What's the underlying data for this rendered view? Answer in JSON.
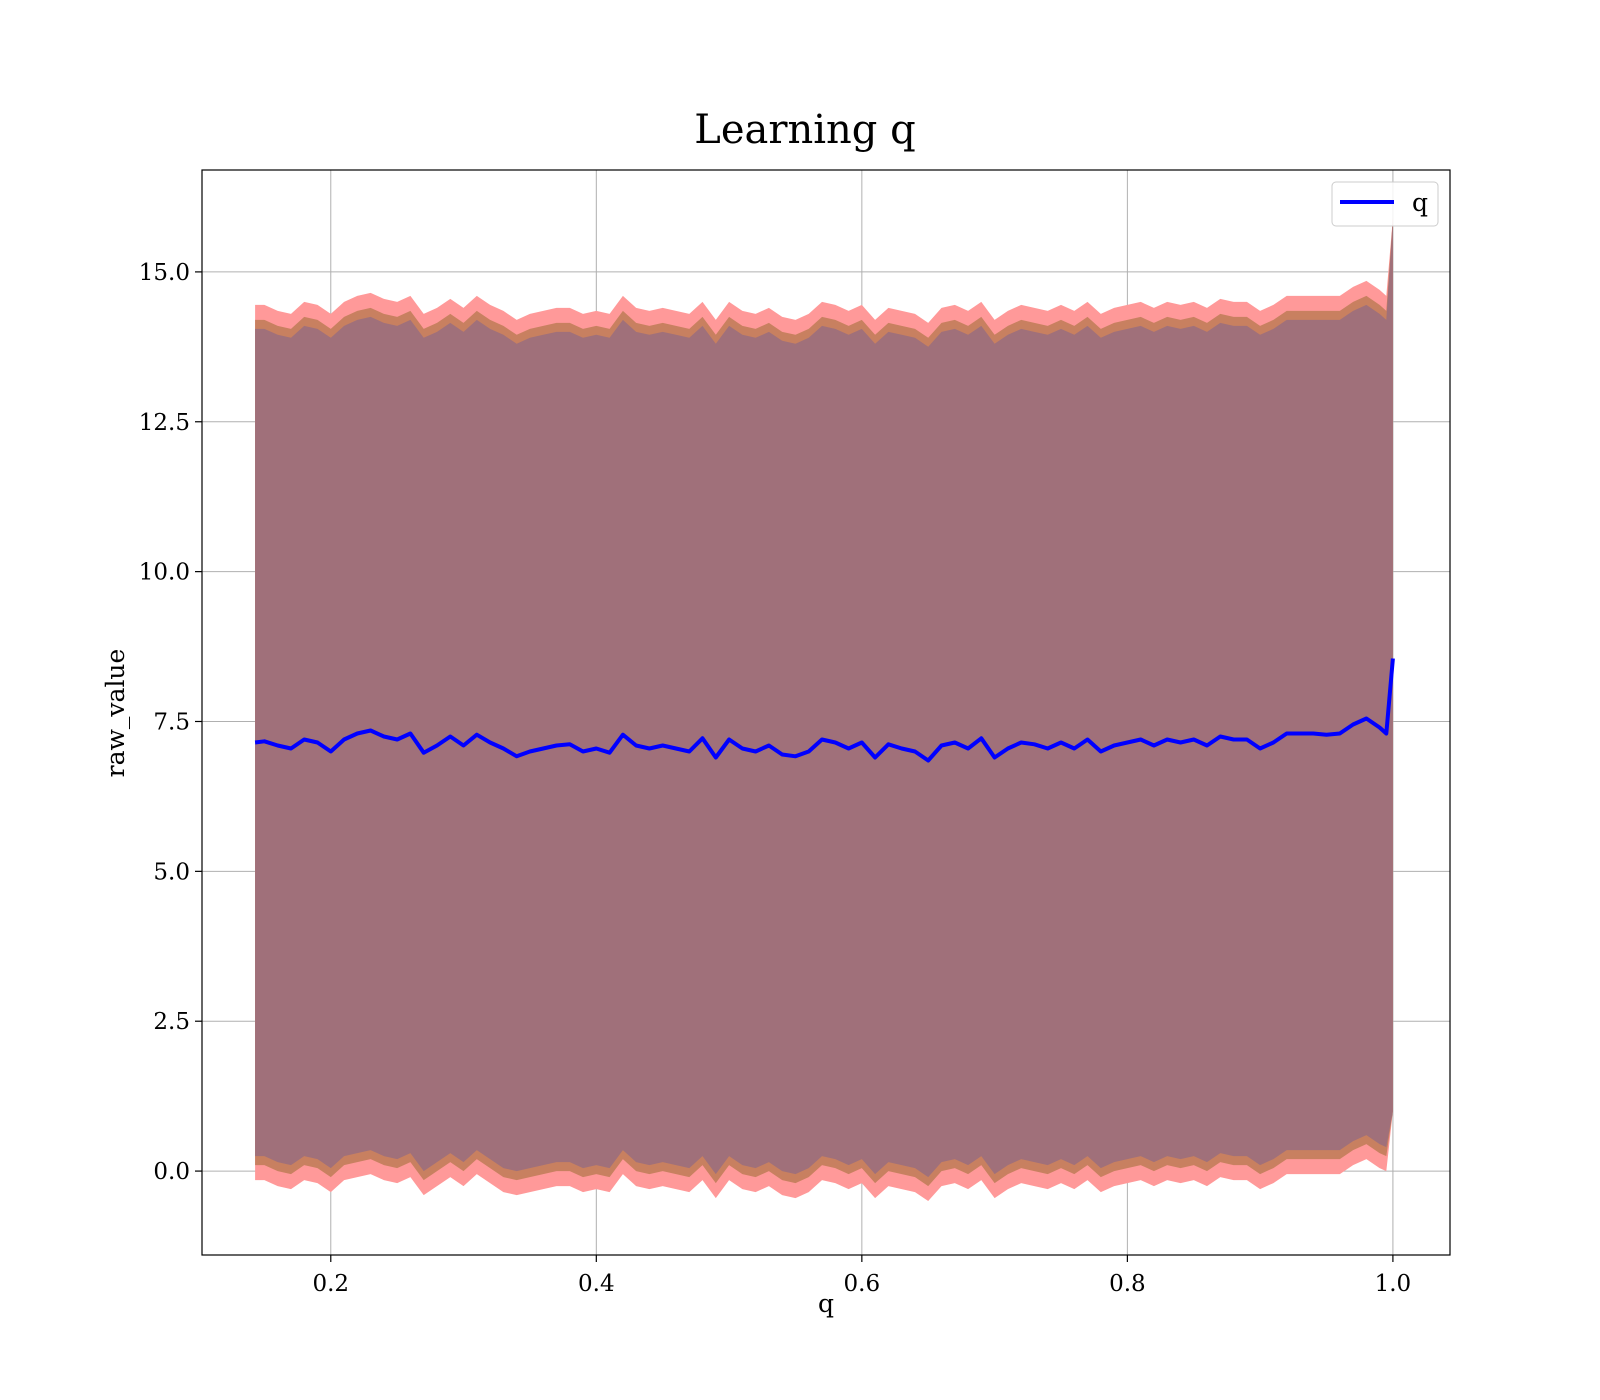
{
  "chart_data": {
    "type": "line",
    "title": "Learning q",
    "xlabel": "q",
    "ylabel": "raw_value",
    "xlim": [
      0.103,
      1.043
    ],
    "ylim": [
      -1.4,
      16.7
    ],
    "x_ticks": [
      0.2,
      0.4,
      0.6,
      0.8,
      1.0
    ],
    "x_tick_labels": [
      "0.2",
      "0.4",
      "0.6",
      "0.8",
      "1.0"
    ],
    "y_ticks": [
      0.0,
      2.5,
      5.0,
      7.5,
      10.0,
      12.5,
      15.0
    ],
    "y_tick_labels": [
      "0.0",
      "2.5",
      "5.0",
      "7.5",
      "10.0",
      "12.5",
      "15.0"
    ],
    "grid": true,
    "legend": {
      "position": "top-right",
      "entries": [
        "q"
      ]
    },
    "colors": {
      "line": "#0000ff",
      "band_outer": "#ff9999",
      "band_middle": "#c88060",
      "band_inner": "#a0707a"
    },
    "series": [
      {
        "name": "q",
        "x": [
          0.143,
          0.15,
          0.16,
          0.17,
          0.18,
          0.19,
          0.2,
          0.21,
          0.22,
          0.23,
          0.24,
          0.25,
          0.26,
          0.27,
          0.28,
          0.29,
          0.3,
          0.31,
          0.32,
          0.33,
          0.34,
          0.35,
          0.36,
          0.37,
          0.38,
          0.39,
          0.4,
          0.41,
          0.42,
          0.43,
          0.44,
          0.45,
          0.46,
          0.47,
          0.48,
          0.49,
          0.5,
          0.51,
          0.52,
          0.53,
          0.54,
          0.55,
          0.56,
          0.57,
          0.58,
          0.59,
          0.6,
          0.61,
          0.62,
          0.63,
          0.64,
          0.65,
          0.66,
          0.67,
          0.68,
          0.69,
          0.7,
          0.71,
          0.72,
          0.73,
          0.74,
          0.75,
          0.76,
          0.77,
          0.78,
          0.79,
          0.8,
          0.81,
          0.82,
          0.83,
          0.84,
          0.85,
          0.86,
          0.87,
          0.88,
          0.89,
          0.9,
          0.91,
          0.92,
          0.93,
          0.94,
          0.95,
          0.96,
          0.97,
          0.98,
          0.99,
          0.995,
          1.0
        ],
        "y": [
          7.15,
          7.17,
          7.1,
          7.05,
          7.2,
          7.15,
          7.0,
          7.2,
          7.3,
          7.35,
          7.25,
          7.2,
          7.3,
          6.98,
          7.1,
          7.25,
          7.1,
          7.28,
          7.15,
          7.05,
          6.92,
          7.0,
          7.05,
          7.1,
          7.12,
          7.0,
          7.05,
          6.98,
          7.28,
          7.1,
          7.05,
          7.1,
          7.05,
          7.0,
          7.22,
          6.9,
          7.2,
          7.05,
          7.0,
          7.1,
          6.95,
          6.92,
          7.0,
          7.2,
          7.15,
          7.05,
          7.15,
          6.9,
          7.12,
          7.05,
          7.0,
          6.85,
          7.1,
          7.15,
          7.05,
          7.22,
          6.9,
          7.05,
          7.15,
          7.12,
          7.05,
          7.15,
          7.05,
          7.2,
          7.0,
          7.1,
          7.15,
          7.2,
          7.1,
          7.2,
          7.15,
          7.2,
          7.1,
          7.25,
          7.2,
          7.2,
          7.05,
          7.15,
          7.3,
          7.3,
          7.3,
          7.28,
          7.3,
          7.45,
          7.55,
          7.4,
          7.3,
          8.55
        ]
      }
    ],
    "bands": [
      {
        "lower": [
          -0.15,
          -0.15,
          -0.25,
          -0.3,
          -0.15,
          -0.2,
          -0.35,
          -0.15,
          -0.1,
          -0.05,
          -0.15,
          -0.2,
          -0.1,
          -0.4,
          -0.25,
          -0.1,
          -0.25,
          -0.05,
          -0.2,
          -0.35,
          -0.4,
          -0.35,
          -0.3,
          -0.25,
          -0.25,
          -0.35,
          -0.3,
          -0.35,
          -0.05,
          -0.25,
          -0.3,
          -0.25,
          -0.3,
          -0.35,
          -0.15,
          -0.45,
          -0.15,
          -0.3,
          -0.35,
          -0.25,
          -0.4,
          -0.45,
          -0.35,
          -0.15,
          -0.2,
          -0.3,
          -0.2,
          -0.45,
          -0.25,
          -0.3,
          -0.35,
          -0.5,
          -0.25,
          -0.2,
          -0.3,
          -0.15,
          -0.45,
          -0.3,
          -0.2,
          -0.25,
          -0.3,
          -0.2,
          -0.3,
          -0.15,
          -0.35,
          -0.25,
          -0.2,
          -0.15,
          -0.25,
          -0.15,
          -0.2,
          -0.15,
          -0.25,
          -0.1,
          -0.15,
          -0.15,
          -0.3,
          -0.2,
          -0.05,
          -0.05,
          -0.05,
          -0.05,
          -0.05,
          0.1,
          0.2,
          0.05,
          0.0,
          1.0
        ],
        "upper": [
          14.45,
          14.45,
          14.35,
          14.3,
          14.5,
          14.45,
          14.3,
          14.5,
          14.6,
          14.65,
          14.55,
          14.5,
          14.6,
          14.3,
          14.4,
          14.55,
          14.4,
          14.6,
          14.45,
          14.35,
          14.2,
          14.3,
          14.35,
          14.4,
          14.4,
          14.3,
          14.35,
          14.3,
          14.6,
          14.4,
          14.35,
          14.4,
          14.35,
          14.3,
          14.5,
          14.2,
          14.5,
          14.35,
          14.3,
          14.4,
          14.25,
          14.2,
          14.3,
          14.5,
          14.45,
          14.35,
          14.45,
          14.2,
          14.4,
          14.35,
          14.3,
          14.15,
          14.4,
          14.45,
          14.35,
          14.5,
          14.2,
          14.35,
          14.45,
          14.4,
          14.35,
          14.45,
          14.35,
          14.5,
          14.3,
          14.4,
          14.45,
          14.5,
          14.4,
          14.5,
          14.45,
          14.5,
          14.4,
          14.55,
          14.5,
          14.5,
          14.35,
          14.45,
          14.6,
          14.6,
          14.6,
          14.6,
          14.6,
          14.75,
          14.85,
          14.7,
          14.6,
          15.9
        ]
      },
      {
        "lower": [
          0.1,
          0.1,
          0.0,
          -0.05,
          0.1,
          0.05,
          -0.1,
          0.1,
          0.15,
          0.2,
          0.1,
          0.05,
          0.15,
          -0.15,
          0.0,
          0.15,
          0.0,
          0.2,
          0.05,
          -0.1,
          -0.15,
          -0.1,
          -0.05,
          0.0,
          0.0,
          -0.1,
          -0.05,
          -0.1,
          0.2,
          0.0,
          -0.05,
          0.0,
          -0.05,
          -0.1,
          0.1,
          -0.2,
          0.1,
          -0.05,
          -0.1,
          0.0,
          -0.15,
          -0.2,
          -0.1,
          0.1,
          0.05,
          -0.05,
          0.05,
          -0.2,
          0.0,
          -0.05,
          -0.1,
          -0.25,
          0.0,
          0.05,
          -0.05,
          0.1,
          -0.2,
          -0.05,
          0.05,
          0.0,
          -0.05,
          0.05,
          -0.05,
          0.1,
          -0.1,
          0.0,
          0.05,
          0.1,
          0.0,
          0.1,
          0.05,
          0.1,
          0.0,
          0.15,
          0.1,
          0.1,
          -0.05,
          0.05,
          0.2,
          0.2,
          0.2,
          0.2,
          0.2,
          0.35,
          0.45,
          0.3,
          0.25,
          1.0
        ],
        "upper": [
          14.2,
          14.2,
          14.1,
          14.05,
          14.25,
          14.2,
          14.05,
          14.25,
          14.35,
          14.4,
          14.3,
          14.25,
          14.35,
          14.05,
          14.15,
          14.3,
          14.15,
          14.35,
          14.2,
          14.1,
          13.95,
          14.05,
          14.1,
          14.15,
          14.15,
          14.05,
          14.1,
          14.05,
          14.35,
          14.15,
          14.1,
          14.15,
          14.1,
          14.05,
          14.25,
          13.95,
          14.25,
          14.1,
          14.05,
          14.15,
          14.0,
          13.95,
          14.05,
          14.25,
          14.2,
          14.1,
          14.2,
          13.95,
          14.15,
          14.1,
          14.05,
          13.9,
          14.15,
          14.2,
          14.1,
          14.25,
          13.95,
          14.1,
          14.2,
          14.15,
          14.1,
          14.2,
          14.1,
          14.25,
          14.05,
          14.15,
          14.2,
          14.25,
          14.15,
          14.25,
          14.2,
          14.25,
          14.15,
          14.3,
          14.25,
          14.25,
          14.1,
          14.2,
          14.35,
          14.35,
          14.35,
          14.35,
          14.35,
          14.5,
          14.6,
          14.45,
          14.35,
          15.9
        ]
      },
      {
        "lower": [
          0.25,
          0.25,
          0.15,
          0.1,
          0.25,
          0.2,
          0.05,
          0.25,
          0.3,
          0.35,
          0.25,
          0.2,
          0.3,
          0.0,
          0.15,
          0.3,
          0.15,
          0.35,
          0.2,
          0.05,
          0.0,
          0.05,
          0.1,
          0.15,
          0.15,
          0.05,
          0.1,
          0.05,
          0.35,
          0.15,
          0.1,
          0.15,
          0.1,
          0.05,
          0.25,
          -0.05,
          0.25,
          0.1,
          0.05,
          0.15,
          0.0,
          -0.05,
          0.05,
          0.25,
          0.2,
          0.1,
          0.2,
          -0.05,
          0.15,
          0.1,
          0.05,
          -0.1,
          0.15,
          0.2,
          0.1,
          0.25,
          -0.05,
          0.1,
          0.2,
          0.15,
          0.1,
          0.2,
          0.1,
          0.25,
          0.05,
          0.15,
          0.2,
          0.25,
          0.15,
          0.25,
          0.2,
          0.25,
          0.15,
          0.3,
          0.25,
          0.25,
          0.1,
          0.2,
          0.35,
          0.35,
          0.35,
          0.35,
          0.35,
          0.5,
          0.6,
          0.45,
          0.4,
          1.0
        ],
        "upper": [
          14.05,
          14.05,
          13.95,
          13.9,
          14.1,
          14.05,
          13.9,
          14.1,
          14.2,
          14.25,
          14.15,
          14.1,
          14.2,
          13.9,
          14.0,
          14.15,
          14.0,
          14.2,
          14.05,
          13.95,
          13.8,
          13.9,
          13.95,
          14.0,
          14.0,
          13.9,
          13.95,
          13.9,
          14.2,
          14.0,
          13.95,
          14.0,
          13.95,
          13.9,
          14.1,
          13.8,
          14.1,
          13.95,
          13.9,
          14.0,
          13.85,
          13.8,
          13.9,
          14.1,
          14.05,
          13.95,
          14.05,
          13.8,
          14.0,
          13.95,
          13.9,
          13.75,
          14.0,
          14.05,
          13.95,
          14.1,
          13.8,
          13.95,
          14.05,
          14.0,
          13.95,
          14.05,
          13.95,
          14.1,
          13.9,
          14.0,
          14.05,
          14.1,
          14.0,
          14.1,
          14.05,
          14.1,
          14.0,
          14.15,
          14.1,
          14.1,
          13.95,
          14.05,
          14.2,
          14.2,
          14.2,
          14.2,
          14.2,
          14.35,
          14.45,
          14.3,
          14.2,
          15.9
        ]
      }
    ]
  }
}
